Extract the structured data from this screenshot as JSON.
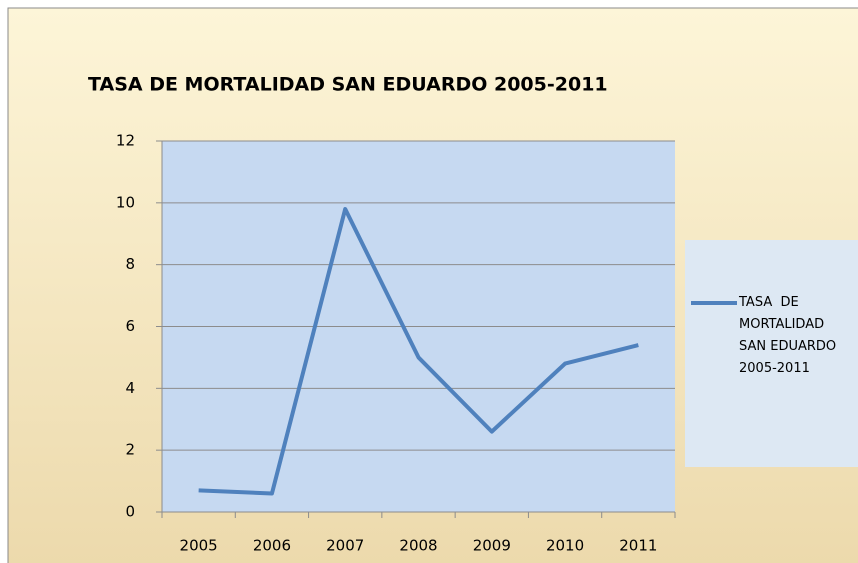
{
  "chart_data": {
    "type": "line",
    "title": "TASA  DE MORTALIDAD  SAN EDUARDO 2005-2011",
    "categories": [
      "2005",
      "2006",
      "2007",
      "2008",
      "2009",
      "2010",
      "2011"
    ],
    "series": [
      {
        "name": "TASA  DE MORTALIDAD  SAN EDUARDO 2005-2011",
        "color": "#4f81bd",
        "values": [
          0.7,
          0.6,
          9.8,
          5.0,
          2.6,
          4.8,
          5.4
        ]
      }
    ],
    "ylim": [
      0,
      12
    ],
    "yticks": [
      0,
      2,
      4,
      6,
      8,
      10,
      12
    ],
    "grid": true,
    "legend": "right"
  }
}
